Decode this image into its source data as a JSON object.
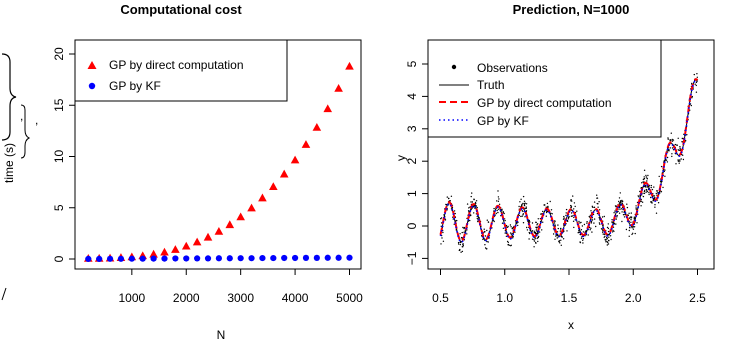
{
  "chart_data": [
    {
      "type": "scatter",
      "title": "Computational cost",
      "xlabel": "N",
      "ylabel": "time (s)",
      "xlim": [
        200,
        5000
      ],
      "ylim": [
        0,
        20
      ],
      "x_ticks": [
        "1000",
        "2000",
        "3000",
        "4000",
        "5000"
      ],
      "y_ticks": [
        "0",
        "5",
        "10",
        "15",
        "20"
      ],
      "legend_position": "top-left",
      "series": [
        {
          "name": "GP by direct computation",
          "color": "#ff0000",
          "marker": "triangle",
          "x": [
            200,
            400,
            600,
            800,
            1000,
            1200,
            1400,
            1600,
            1800,
            2000,
            2200,
            2400,
            2600,
            2800,
            3000,
            3200,
            3400,
            3600,
            3800,
            4000,
            4200,
            4400,
            4600,
            4800,
            5000
          ],
          "y": [
            0.0,
            0.01,
            0.03,
            0.08,
            0.15,
            0.26,
            0.41,
            0.61,
            0.87,
            1.2,
            1.6,
            2.07,
            2.64,
            3.29,
            4.05,
            4.92,
            5.9,
            7.0,
            8.23,
            9.6,
            11.11,
            12.78,
            14.6,
            16.59,
            18.75
          ]
        },
        {
          "name": "GP by KF",
          "color": "#0000ff",
          "marker": "circle",
          "x": [
            200,
            400,
            600,
            800,
            1000,
            1200,
            1400,
            1600,
            1800,
            2000,
            2200,
            2400,
            2600,
            2800,
            3000,
            3200,
            3400,
            3600,
            3800,
            4000,
            4200,
            4400,
            4600,
            4800,
            5000
          ],
          "y": [
            0.01,
            0.01,
            0.02,
            0.02,
            0.03,
            0.03,
            0.04,
            0.04,
            0.05,
            0.05,
            0.06,
            0.06,
            0.07,
            0.07,
            0.08,
            0.08,
            0.09,
            0.09,
            0.1,
            0.1,
            0.11,
            0.11,
            0.12,
            0.12,
            0.13
          ]
        }
      ]
    },
    {
      "type": "line",
      "title": "Prediction, N=1000",
      "xlabel": "x",
      "ylabel": "y",
      "xlim": [
        0.5,
        2.5
      ],
      "ylim": [
        -1,
        5
      ],
      "x_ticks": [
        "0.5",
        "1.0",
        "1.5",
        "2.0",
        "2.5"
      ],
      "y_ticks": [
        "−1",
        "0",
        "1",
        "2",
        "3",
        "4",
        "5"
      ],
      "legend_position": "top-left",
      "series": [
        {
          "name": "Observations",
          "color": "#000000",
          "style": "points"
        },
        {
          "name": "Truth",
          "color": "#000000",
          "style": "solid"
        },
        {
          "name": "GP by direct computation",
          "color": "#ff0000",
          "style": "dashed"
        },
        {
          "name": "GP by KF",
          "color": "#0000ff",
          "style": "dotted"
        }
      ]
    }
  ],
  "caption_fragments": {
    "comma": ","
  }
}
